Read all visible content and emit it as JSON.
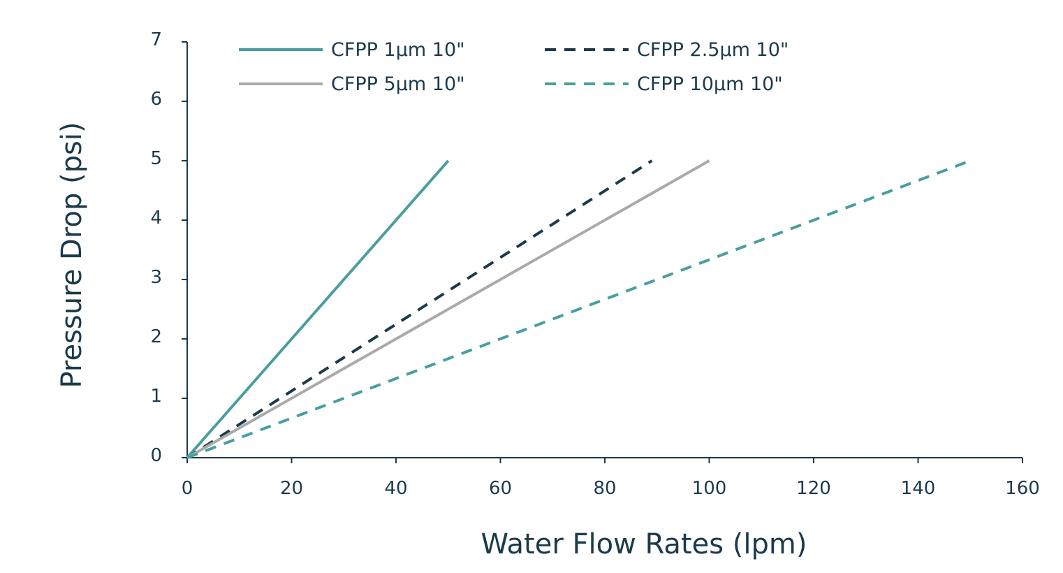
{
  "chart_data": {
    "type": "line",
    "title": "",
    "xlabel": "Water Flow Rates (lpm)",
    "ylabel": "Pressure Drop (psi)",
    "xlim": [
      0,
      160
    ],
    "ylim": [
      0,
      7
    ],
    "x_ticks": [
      "0",
      "20",
      "40",
      "60",
      "80",
      "100",
      "120",
      "140",
      "160"
    ],
    "y_ticks": [
      "0",
      "1",
      "2",
      "3",
      "4",
      "5",
      "6",
      "7"
    ],
    "grid": false,
    "legend_position": "top",
    "series": [
      {
        "name": "CFPP 1µm 10\"",
        "color": "#4a9e9e",
        "dash": "solid",
        "points": [
          [
            0,
            0
          ],
          [
            50,
            5
          ]
        ]
      },
      {
        "name": "CFPP 2.5µm 10\"",
        "color": "#1b3a4b",
        "dash": "dashed",
        "points": [
          [
            0,
            0
          ],
          [
            89,
            5
          ]
        ]
      },
      {
        "name": "CFPP 5µm 10\"",
        "color": "#aaaaaa",
        "dash": "solid",
        "points": [
          [
            0,
            0
          ],
          [
            100,
            5
          ]
        ]
      },
      {
        "name": "CFPP 10µm 10\"",
        "color": "#4a9e9e",
        "dash": "dashed",
        "points": [
          [
            0,
            0
          ],
          [
            150,
            5
          ]
        ]
      }
    ]
  },
  "colors": {
    "axis": "#1b3a4b",
    "text": "#1b3a4b"
  }
}
